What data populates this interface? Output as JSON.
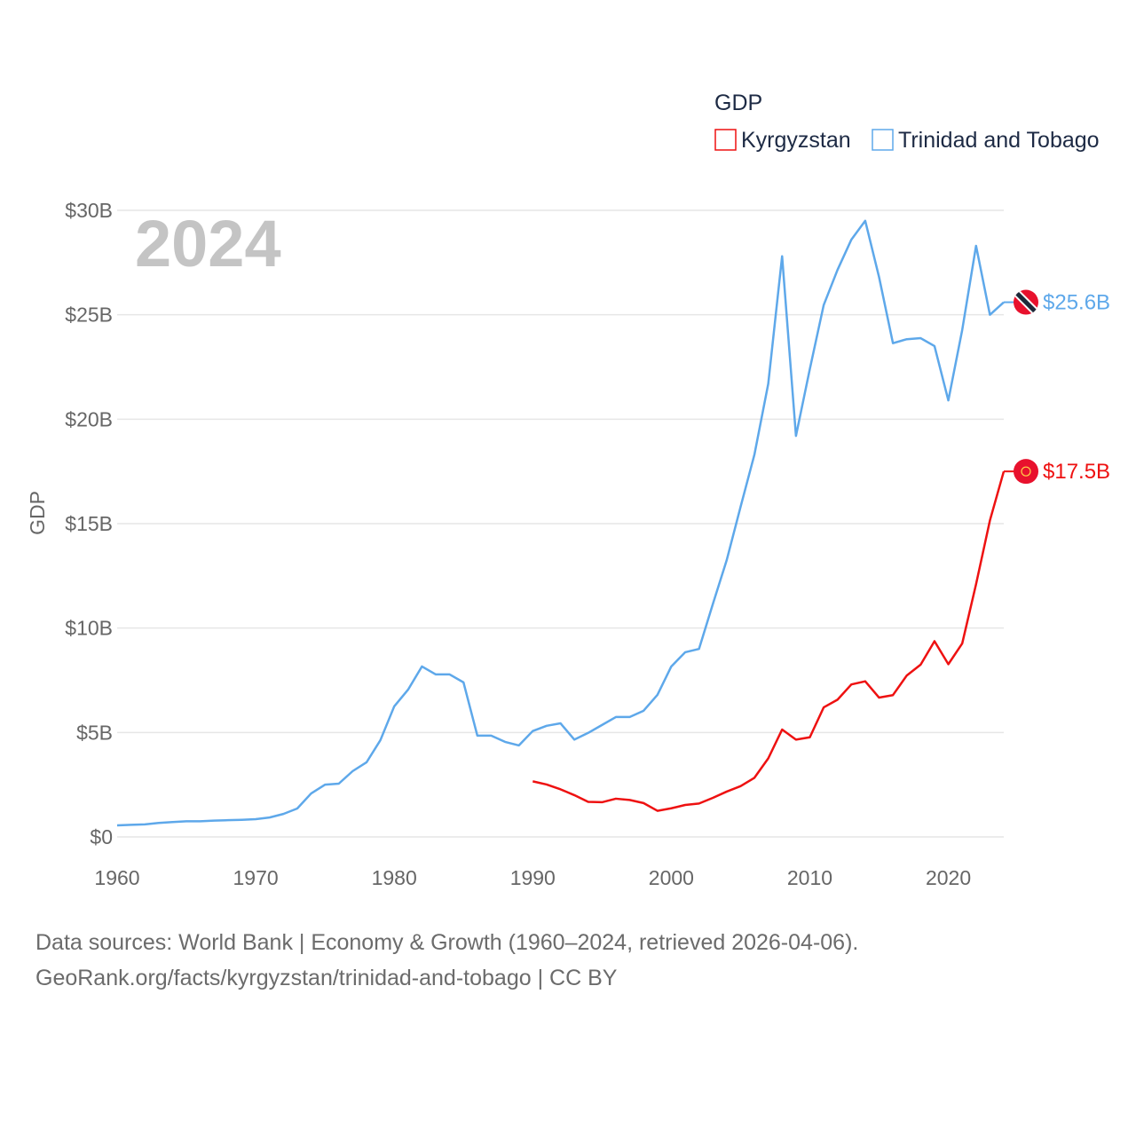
{
  "chart_data": {
    "type": "line",
    "title": "GDP",
    "watermark_year": "2024",
    "xlabel": "",
    "ylabel": "GDP",
    "xlim": [
      1960,
      2024
    ],
    "ylim": [
      0,
      30
    ],
    "grid": true,
    "legend_placement": "top-right",
    "x_ticks": [
      1960,
      1970,
      1980,
      1990,
      2000,
      2010,
      2020
    ],
    "x_tick_labels": [
      "1960",
      "1970",
      "1980",
      "1990",
      "2000",
      "2010",
      "2020"
    ],
    "y_ticks": [
      0,
      5,
      10,
      15,
      20,
      25,
      30
    ],
    "y_tick_labels": [
      "$0",
      "$5B",
      "$10B",
      "$15B",
      "$20B",
      "$25B",
      "$30B"
    ],
    "series": [
      {
        "name": "Kyrgyzstan",
        "color": "#ee1111",
        "end_label": "$17.5B",
        "flag_icon": "kyrgyzstan-flag",
        "start_year": 1990,
        "values": [
          2.66,
          2.51,
          2.28,
          2.0,
          1.68,
          1.66,
          1.83,
          1.77,
          1.62,
          1.25,
          1.37,
          1.53,
          1.6,
          1.87,
          2.17,
          2.43,
          2.83,
          3.76,
          5.14,
          4.66,
          4.77,
          6.2,
          6.57,
          7.3,
          7.45,
          6.67,
          6.79,
          7.73,
          8.25,
          9.37,
          8.27,
          9.26,
          12.1,
          15.15,
          17.5
        ]
      },
      {
        "name": "Trinidad and Tobago",
        "color": "#5ea8ea",
        "end_label": "$25.6B",
        "flag_icon": "trinidad-and-tobago-flag",
        "start_year": 1960,
        "values": [
          0.55,
          0.58,
          0.6,
          0.67,
          0.71,
          0.75,
          0.75,
          0.78,
          0.8,
          0.82,
          0.85,
          0.93,
          1.1,
          1.36,
          2.08,
          2.5,
          2.55,
          3.15,
          3.57,
          4.63,
          6.25,
          7.05,
          8.16,
          7.78,
          7.78,
          7.4,
          4.85,
          4.85,
          4.55,
          4.38,
          5.07,
          5.32,
          5.44,
          4.66,
          4.98,
          5.36,
          5.74,
          5.74,
          6.04,
          6.8,
          8.16,
          8.84,
          9.0,
          11.15,
          13.25,
          15.8,
          18.3,
          21.7,
          27.8,
          19.2,
          22.4,
          25.46,
          27.15,
          28.6,
          29.5,
          26.8,
          23.64,
          23.83,
          23.88,
          23.5,
          20.9,
          24.27,
          28.3,
          25.0,
          25.6
        ]
      }
    ]
  },
  "footer": {
    "line1": "Data sources: World Bank | Economy & Growth (1960–2024, retrieved 2026-04-06).",
    "line2": "GeoRank.org/facts/kyrgyzstan/trinidad-and-tobago | CC BY"
  }
}
